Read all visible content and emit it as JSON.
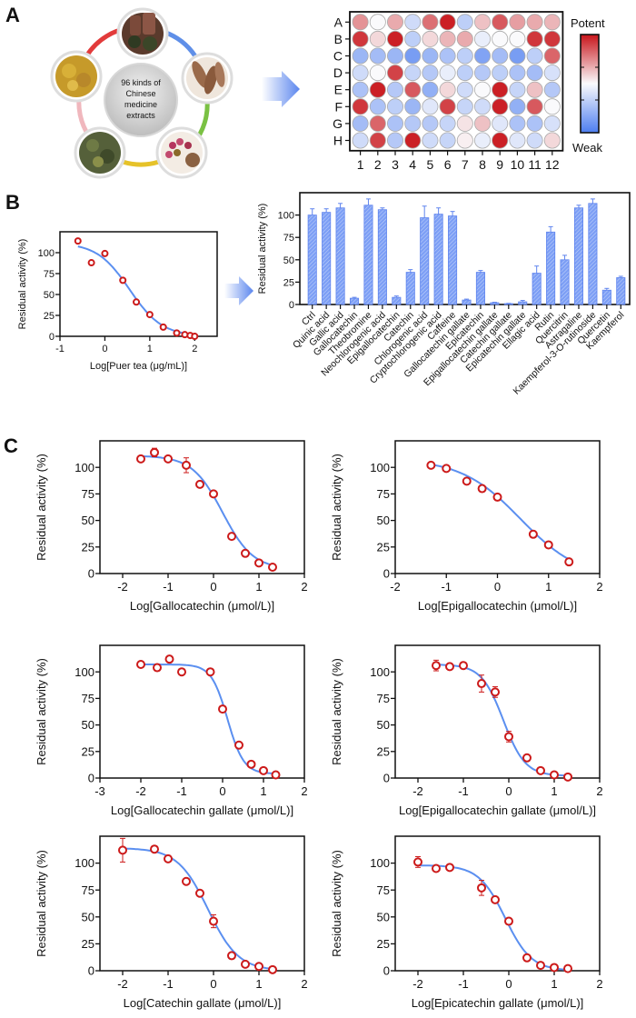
{
  "figure": {
    "panels": [
      "A",
      "B",
      "C"
    ],
    "panel_a": {
      "center_text": [
        "96 kinds of",
        "Chinese",
        "medicine",
        "extracts"
      ],
      "ring_colors": [
        "#e23b3b",
        "#5f8fe8",
        "#7ac143",
        "#e6c229",
        "#f0b7bd"
      ],
      "photo_items": [
        "pu-erh-tea",
        "bark-slices",
        "rose-buds-powder",
        "dried-leaves",
        "root-slices"
      ],
      "arrow_label": ""
    }
  },
  "chart_data": [
    {
      "id": "heatmap-96-well",
      "type": "heatmap",
      "title": "",
      "row_labels": [
        "A",
        "B",
        "C",
        "D",
        "E",
        "F",
        "G",
        "H"
      ],
      "col_labels": [
        "1",
        "2",
        "3",
        "4",
        "5",
        "6",
        "7",
        "8",
        "9",
        "10",
        "11",
        "12"
      ],
      "scale_min_label": "Weak",
      "scale_max_label": "Potent",
      "value_range": [
        -1,
        1
      ],
      "values": [
        [
          0.45,
          0.0,
          0.35,
          -0.25,
          0.6,
          0.95,
          -0.35,
          0.25,
          0.7,
          0.4,
          0.35,
          0.3
        ],
        [
          0.85,
          0.15,
          0.95,
          -0.35,
          0.15,
          0.3,
          0.35,
          -0.1,
          0.0,
          0.0,
          0.85,
          0.85
        ],
        [
          -0.55,
          -0.5,
          -0.55,
          -0.75,
          -0.55,
          -0.45,
          -0.35,
          -0.7,
          -0.5,
          -0.75,
          -0.35,
          0.65
        ],
        [
          -0.25,
          0.0,
          0.8,
          -0.3,
          -0.4,
          -0.1,
          -0.35,
          -0.4,
          -0.35,
          -0.45,
          -0.5,
          -0.2
        ],
        [
          -0.45,
          0.95,
          -0.4,
          0.7,
          -0.6,
          0.15,
          -0.25,
          0.0,
          0.95,
          -0.3,
          0.25,
          -0.4
        ],
        [
          0.85,
          -0.45,
          -0.35,
          -0.55,
          -0.15,
          0.8,
          -0.3,
          -0.25,
          0.95,
          -0.6,
          0.7,
          0.0
        ],
        [
          -0.5,
          0.65,
          -0.45,
          -0.4,
          -0.4,
          -0.3,
          0.1,
          0.25,
          -0.15,
          -0.45,
          -0.45,
          -0.2
        ],
        [
          -0.25,
          0.8,
          -0.4,
          0.95,
          -0.25,
          -0.3,
          0.05,
          -0.1,
          0.95,
          -0.15,
          -0.25,
          0.15
        ]
      ]
    },
    {
      "id": "puer-tea-dose-response",
      "type": "scatter",
      "xlabel": "Log[Puer tea (μg/mL)]",
      "ylabel": "Residual activity (%)",
      "xlim": [
        -1,
        2.5
      ],
      "ylim": [
        0,
        125
      ],
      "xticks": [
        -1,
        0,
        1,
        2
      ],
      "yticks": [
        0,
        25,
        50,
        75,
        100
      ],
      "x": [
        -0.6,
        -0.3,
        0.0,
        0.4,
        0.7,
        1.0,
        1.3,
        1.6,
        1.78,
        1.9,
        2.0
      ],
      "y": [
        114,
        88,
        99,
        67,
        41,
        26,
        11,
        4,
        2,
        1,
        0
      ],
      "errors": [],
      "fit": {
        "top": 112,
        "bottom": 0,
        "logIC50": 0.55,
        "hill": 1.2,
        "x_range": [
          -0.6,
          2.0
        ]
      }
    },
    {
      "id": "compound-screen-bar",
      "type": "bar",
      "xlabel": "",
      "ylabel": "Residual activity (%)",
      "ylim": [
        0,
        125
      ],
      "yticks": [
        0,
        25,
        50,
        75,
        100
      ],
      "categories": [
        "Ctrl",
        "Quinic acid",
        "Gallic acid",
        "Gallocatechin",
        "Theobromine",
        "Neochlorogenic acid",
        "Epigallocatechin",
        "Catechin",
        "Chlorogenic acid",
        "Cryptochlorogenic acid",
        "Caffeine",
        "Gallocatechin gallate",
        "Epicatechin",
        "Epigallocatechin gallate",
        "Catechin gallate",
        "Epicatechin gallate",
        "Ellagic acid",
        "Rutin",
        "Quercitrin",
        "Astragaline",
        "Kaempferol-3-O-rutinoside",
        "Quercetin",
        "Kaempferol"
      ],
      "values": [
        100,
        103,
        108,
        7,
        111,
        106,
        8,
        36,
        97,
        101,
        99,
        5,
        36,
        2,
        1,
        3,
        35,
        81,
        50,
        108,
        113,
        16,
        30
      ],
      "errors": [
        7,
        4,
        5,
        1,
        7,
        2,
        1.5,
        3,
        13,
        7,
        5,
        1,
        2,
        0.5,
        0.3,
        1.5,
        8,
        6,
        5,
        3,
        5,
        2,
        1.5
      ]
    },
    {
      "id": "gallocatechin-dose-response",
      "type": "scatter",
      "xlabel": "Log[Gallocatechin (μmol/L)]",
      "ylabel": "Residual activity (%)",
      "xlim": [
        -2.5,
        2
      ],
      "ylim": [
        0,
        125
      ],
      "xticks": [
        -2,
        -1,
        0,
        1,
        2
      ],
      "yticks": [
        0,
        25,
        50,
        75,
        100
      ],
      "x": [
        -1.6,
        -1.3,
        -1.0,
        -0.6,
        -0.3,
        0.0,
        0.4,
        0.7,
        1.0,
        1.3
      ],
      "y": [
        108,
        114,
        108,
        102,
        84,
        75,
        35,
        19,
        10,
        6
      ],
      "errors": [
        0,
        4,
        0,
        7,
        3,
        0,
        0,
        0,
        0,
        0
      ],
      "fit": {
        "top": 111,
        "bottom": 4,
        "logIC50": 0.2,
        "hill": 1.3,
        "x_range": [
          -1.6,
          1.3
        ]
      }
    },
    {
      "id": "epigallocatechin-dose-response",
      "type": "scatter",
      "xlabel": "Log[Epigallocatechin (μmol/L)]",
      "ylabel": "Residual activity (%)",
      "xlim": [
        -2,
        2
      ],
      "ylim": [
        0,
        125
      ],
      "xticks": [
        -2,
        -1,
        0,
        1,
        2
      ],
      "yticks": [
        0,
        25,
        50,
        75,
        100
      ],
      "x": [
        -1.3,
        -1.0,
        -0.6,
        -0.3,
        0.0,
        0.7,
        1.0,
        1.4
      ],
      "y": [
        102,
        99,
        87,
        80,
        72,
        37,
        27,
        11
      ],
      "errors": [
        2,
        0,
        0,
        2,
        0,
        3,
        0,
        0
      ],
      "fit": {
        "top": 108,
        "bottom": -5,
        "logIC50": 0.45,
        "hill": 0.75,
        "x_range": [
          -1.3,
          1.4
        ]
      }
    },
    {
      "id": "gallocatechin-gallate-dose-response",
      "type": "scatter",
      "xlabel": "Log[Gallocatechin gallate (μmol/L)]",
      "ylabel": "Residual activity (%)",
      "xlim": [
        -3,
        2
      ],
      "ylim": [
        0,
        125
      ],
      "xticks": [
        -3,
        -2,
        -1,
        0,
        1,
        2
      ],
      "yticks": [
        0,
        25,
        50,
        75,
        100
      ],
      "x": [
        -2.0,
        -1.6,
        -1.3,
        -1.0,
        -0.3,
        0.0,
        0.4,
        0.7,
        1.0,
        1.3
      ],
      "y": [
        107,
        104,
        112,
        100,
        100,
        65,
        31,
        13,
        7,
        3
      ],
      "errors": [
        0,
        0,
        0,
        2,
        0,
        0,
        0,
        2,
        0,
        0
      ],
      "fit": {
        "top": 107,
        "bottom": 4,
        "logIC50": 0.12,
        "hill": 2.2,
        "x_range": [
          -2.0,
          1.3
        ]
      }
    },
    {
      "id": "epigallocatechin-gallate-dose-response",
      "type": "scatter",
      "xlabel": "Log[Epigallocatechin gallate (μmol/L)]",
      "ylabel": "Residual activity (%)",
      "xlim": [
        -2.5,
        2
      ],
      "ylim": [
        0,
        125
      ],
      "xticks": [
        -2,
        -1,
        0,
        1,
        2
      ],
      "yticks": [
        0,
        25,
        50,
        75,
        100
      ],
      "x": [
        -1.6,
        -1.3,
        -1.0,
        -0.6,
        -0.3,
        0.0,
        0.4,
        0.7,
        1.0,
        1.3
      ],
      "y": [
        106,
        105,
        106,
        89,
        81,
        39,
        19,
        7,
        3,
        1
      ],
      "errors": [
        5,
        3,
        0,
        8,
        5,
        5,
        0,
        0,
        0,
        0
      ],
      "fit": {
        "top": 107,
        "bottom": 2,
        "logIC50": -0.12,
        "hill": 1.8,
        "x_range": [
          -1.6,
          1.3
        ]
      }
    },
    {
      "id": "catechin-gallate-dose-response",
      "type": "scatter",
      "xlabel": "Log[Catechin gallate (μmol/L)]",
      "ylabel": "Residual activity (%)",
      "xlim": [
        -2.5,
        2
      ],
      "ylim": [
        0,
        125
      ],
      "xticks": [
        -2,
        -1,
        0,
        1,
        2
      ],
      "yticks": [
        0,
        25,
        50,
        75,
        100
      ],
      "x": [
        -2.0,
        -1.3,
        -1.0,
        -0.6,
        -0.3,
        0.0,
        0.4,
        0.7,
        1.0,
        1.3
      ],
      "y": [
        112,
        113,
        104,
        83,
        72,
        46,
        14,
        6,
        4,
        1
      ],
      "errors": [
        11,
        3,
        3,
        0,
        0,
        6,
        0,
        0,
        0,
        0
      ],
      "fit": {
        "top": 114,
        "bottom": 0,
        "logIC50": -0.12,
        "hill": 1.3,
        "x_range": [
          -2.0,
          1.3
        ]
      }
    },
    {
      "id": "epicatechin-gallate-dose-response",
      "type": "scatter",
      "xlabel": "Log[Epicatechin gallate (μmol/L)]",
      "ylabel": "Residual activity (%)",
      "xlim": [
        -2.5,
        2
      ],
      "ylim": [
        0,
        125
      ],
      "xticks": [
        -2,
        -1,
        0,
        1,
        2
      ],
      "yticks": [
        0,
        25,
        50,
        75,
        100
      ],
      "x": [
        -2.0,
        -1.6,
        -1.3,
        -0.6,
        -0.3,
        0.0,
        0.4,
        0.7,
        1.0,
        1.3
      ],
      "y": [
        101,
        95,
        96,
        77,
        66,
        46,
        12,
        5,
        3,
        2
      ],
      "errors": [
        5,
        0,
        2,
        7,
        0,
        0,
        0,
        0,
        0,
        0
      ],
      "fit": {
        "top": 98,
        "bottom": 0,
        "logIC50": -0.08,
        "hill": 1.5,
        "x_range": [
          -2.0,
          1.3
        ]
      }
    }
  ],
  "colors": {
    "curve": "#5b8ff0",
    "point": "#cc1a1a",
    "bar": "#7d9ff5",
    "bar_edge": "#5f84ee",
    "potent": "#c8141a",
    "weak": "#4d7ef0"
  }
}
